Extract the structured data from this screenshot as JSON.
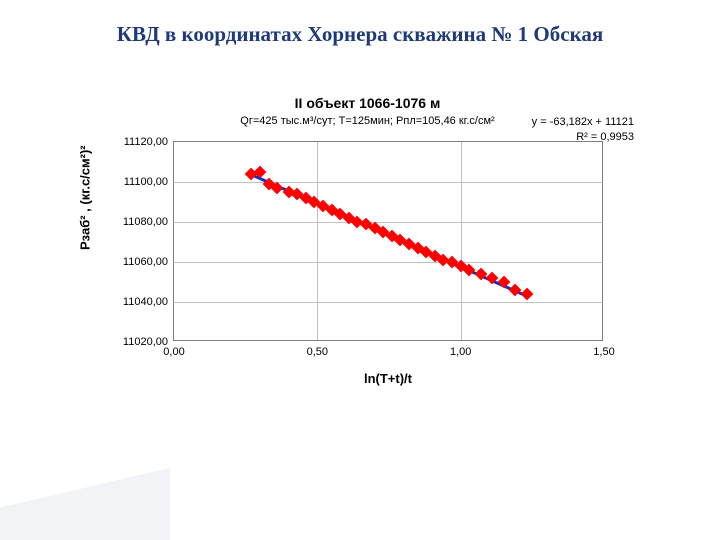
{
  "page": {
    "title": "КВД в координатах Хорнера скважина № 1 Обская",
    "title_color": "#1f3a7a"
  },
  "chart": {
    "type": "scatter",
    "title": "II объект 1066-1076 м",
    "subtitle": "Qг=425 тыс.м³/сут; T=125мин; Pпл=105,46 кг.с/см²",
    "equation_line1": "y = -63,182x + 11121",
    "equation_line2": "R² = 0,9953",
    "xlabel": "ln(T+t)/t",
    "ylabel": "Pзаб² , (кг.с/см²)²",
    "xlim": [
      0.0,
      1.5
    ],
    "ylim": [
      11020,
      11120
    ],
    "xticks": [
      0.0,
      0.5,
      1.0,
      1.5
    ],
    "xtick_labels": [
      "0,00",
      "0,50",
      "1,00",
      "1,50"
    ],
    "yticks": [
      11020,
      11040,
      11060,
      11080,
      11100,
      11120
    ],
    "ytick_labels": [
      "11020,00",
      "11040,00",
      "11060,00",
      "11080,00",
      "11100,00",
      "11120,00"
    ],
    "background_color": "#ffffff",
    "grid_color": "#c0c0c0",
    "axis_color": "#808080",
    "title_fontsize": 14,
    "label_fontsize": 13,
    "tick_fontsize": 11,
    "marker_color": "#ff0000",
    "marker_size": 9,
    "trend_color": "#0033cc",
    "trend_width": 2.5,
    "trend_x1": 0.27,
    "trend_x2": 1.23,
    "data": [
      {
        "x": 0.27,
        "y": 11104
      },
      {
        "x": 0.3,
        "y": 11105
      },
      {
        "x": 0.33,
        "y": 11099
      },
      {
        "x": 0.36,
        "y": 11097
      },
      {
        "x": 0.4,
        "y": 11095
      },
      {
        "x": 0.43,
        "y": 11094
      },
      {
        "x": 0.46,
        "y": 11092
      },
      {
        "x": 0.49,
        "y": 11090
      },
      {
        "x": 0.52,
        "y": 11088
      },
      {
        "x": 0.55,
        "y": 11086
      },
      {
        "x": 0.58,
        "y": 11084
      },
      {
        "x": 0.61,
        "y": 11082
      },
      {
        "x": 0.64,
        "y": 11080
      },
      {
        "x": 0.67,
        "y": 11079
      },
      {
        "x": 0.7,
        "y": 11077
      },
      {
        "x": 0.73,
        "y": 11075
      },
      {
        "x": 0.76,
        "y": 11073
      },
      {
        "x": 0.79,
        "y": 11071
      },
      {
        "x": 0.82,
        "y": 11069
      },
      {
        "x": 0.85,
        "y": 11067
      },
      {
        "x": 0.88,
        "y": 11065
      },
      {
        "x": 0.91,
        "y": 11063
      },
      {
        "x": 0.94,
        "y": 11061
      },
      {
        "x": 0.97,
        "y": 11060
      },
      {
        "x": 1.0,
        "y": 11058
      },
      {
        "x": 1.03,
        "y": 11056
      },
      {
        "x": 1.07,
        "y": 11054
      },
      {
        "x": 1.11,
        "y": 11052
      },
      {
        "x": 1.15,
        "y": 11050
      },
      {
        "x": 1.19,
        "y": 11046
      },
      {
        "x": 1.23,
        "y": 11044
      }
    ]
  }
}
